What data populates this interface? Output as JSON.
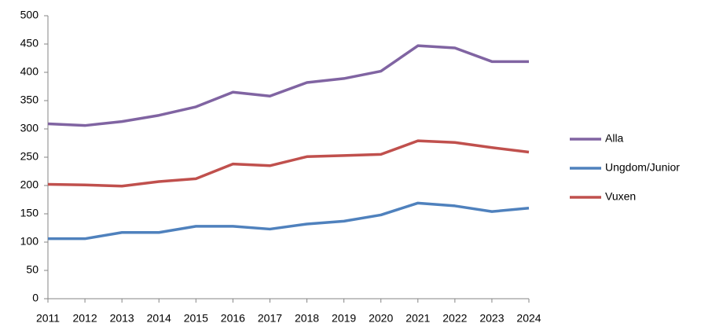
{
  "chart_data": {
    "type": "line",
    "x": [
      2011,
      2012,
      2013,
      2014,
      2015,
      2016,
      2017,
      2018,
      2019,
      2020,
      2021,
      2022,
      2023,
      2024
    ],
    "xlim": [
      2011,
      2024
    ],
    "xticks": [
      2011,
      2012,
      2013,
      2014,
      2015,
      2016,
      2017,
      2018,
      2019,
      2020,
      2021,
      2022,
      2023,
      2024
    ],
    "ylim": [
      0,
      500
    ],
    "yticks": [
      0,
      50,
      100,
      150,
      200,
      250,
      300,
      350,
      400,
      450,
      500
    ],
    "grid": false,
    "legend": "right",
    "series": [
      {
        "name": "Alla",
        "color": "#8064a2",
        "values": [
          309,
          306,
          313,
          324,
          339,
          365,
          358,
          382,
          389,
          402,
          447,
          443,
          419,
          419
        ]
      },
      {
        "name": "Ungdom/Junior",
        "color": "#4f81bd",
        "values": [
          106,
          106,
          117,
          117,
          128,
          128,
          123,
          132,
          137,
          148,
          169,
          164,
          154,
          160
        ]
      },
      {
        "name": "Vuxen",
        "color": "#c0504d",
        "values": [
          202,
          201,
          199,
          207,
          212,
          238,
          235,
          251,
          253,
          255,
          279,
          276,
          267,
          259
        ]
      }
    ]
  }
}
